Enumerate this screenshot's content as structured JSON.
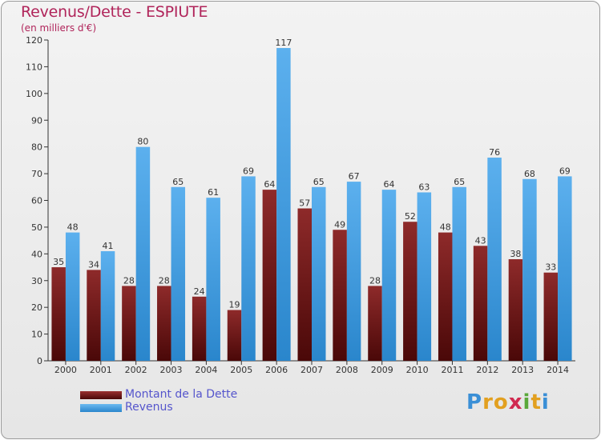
{
  "title": "Revenus/Dette - ESPIUTE",
  "subtitle": "(en milliers d'€)",
  "legend": {
    "debt_label": "Montant de la Dette",
    "revenue_label": "Revenus"
  },
  "logo": [
    "P",
    "r",
    "o",
    "x",
    "i",
    "t",
    "i"
  ],
  "colors": {
    "debt": "#7a1818",
    "revenue": "#3e9ee4",
    "title": "#b0245a",
    "axis": "#333333"
  },
  "chart_data": {
    "type": "bar",
    "title": "Revenus/Dette - ESPIUTE",
    "subtitle": "(en milliers d'€)",
    "categories": [
      "2000",
      "2001",
      "2002",
      "2003",
      "2004",
      "2005",
      "2006",
      "2007",
      "2008",
      "2009",
      "2010",
      "2011",
      "2012",
      "2013",
      "2014"
    ],
    "series": [
      {
        "name": "Montant de la Dette",
        "values": [
          35,
          34,
          28,
          28,
          24,
          19,
          64,
          57,
          49,
          28,
          52,
          48,
          43,
          38,
          33
        ]
      },
      {
        "name": "Revenus",
        "values": [
          48,
          41,
          80,
          65,
          61,
          69,
          117,
          65,
          67,
          64,
          63,
          65,
          76,
          68,
          69
        ]
      }
    ],
    "ylim": [
      0,
      120
    ],
    "yticks": [
      0,
      10,
      20,
      30,
      40,
      50,
      60,
      70,
      80,
      90,
      100,
      110,
      120
    ],
    "grid": false,
    "legend": "bottom-left"
  }
}
